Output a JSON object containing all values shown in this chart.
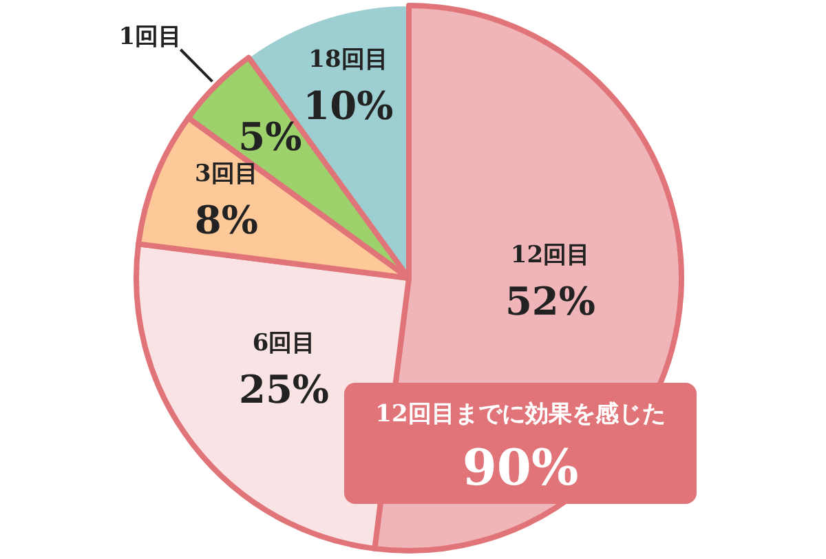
{
  "chart_data": {
    "type": "pie",
    "categories": [
      "12回目",
      "6回目",
      "3回目",
      "1回目",
      "18回目"
    ],
    "values": [
      52,
      25,
      8,
      5,
      10
    ],
    "colors": [
      "#efb5b8",
      "#fae3e5",
      "#fdc999",
      "#9dd16b",
      "#9dcfd2"
    ],
    "value_labels": [
      "52%",
      "25%",
      "8%",
      "5%",
      "10%"
    ],
    "annotations": [
      "12回目までに効果を感じた",
      "90%"
    ]
  }
}
